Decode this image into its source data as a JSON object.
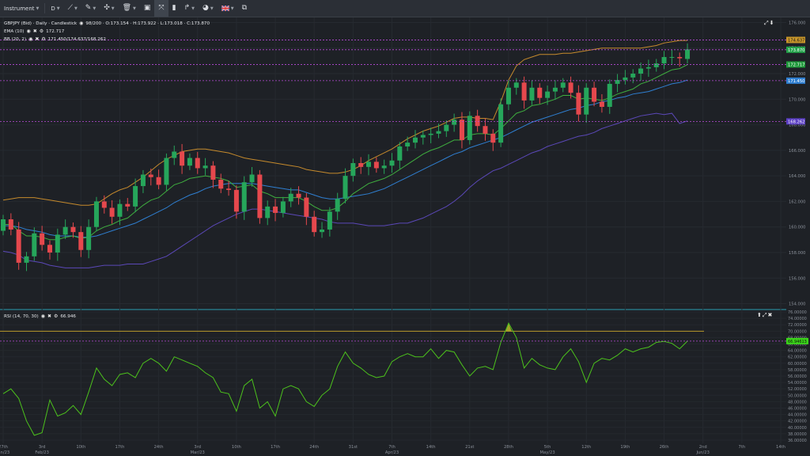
{
  "toolbar": {
    "instrument_label": "Instrument",
    "timeframe_label": "D"
  },
  "legend": {
    "instrument_line": "GBPJPY (Bid) · Daily · Candlestick",
    "ohlc": "98/200 · O:173.154 · H:173.922 · L:173.018 · C:173.870",
    "ema_label": "EMA (10)",
    "ema_value": "172.717",
    "bb_label": "BB (20, 2)",
    "bb_value": "171.450/174.637/168.262",
    "rsi_label": "RSI (14, 70, 30)",
    "rsi_value": "66.946"
  },
  "colors": {
    "up": "#26a65b",
    "down": "#e5484d",
    "ema": "#3fae3f",
    "bb_upper": "#c58a2c",
    "bb_middle": "#2f7fd1",
    "bb_lower": "#5b48b8",
    "rsi": "#4cc21c",
    "rsi_upper_line": "#b89a2a",
    "level_line": "#b84ad8"
  },
  "chart_data": [
    {
      "type": "candlestick",
      "title": "GBPJPY (Bid) · Daily · Candlestick",
      "ylim": [
        153.6,
        176.4
      ],
      "y_ticks": [
        "176.000",
        "174.000",
        "172.000",
        "170.000",
        "168.000",
        "166.000",
        "164.000",
        "162.000",
        "160.000",
        "158.000",
        "156.000",
        "154.000"
      ],
      "x_ticks": [
        {
          "i": 0,
          "label": "27th",
          "sub": "Jan/23"
        },
        {
          "i": 5,
          "label": "3rd",
          "sub": "Feb/23"
        },
        {
          "i": 10,
          "label": "10th",
          "sub": ""
        },
        {
          "i": 15,
          "label": "17th",
          "sub": ""
        },
        {
          "i": 20,
          "label": "24th",
          "sub": ""
        },
        {
          "i": 25,
          "label": "3rd",
          "sub": "Mar/23"
        },
        {
          "i": 30,
          "label": "10th",
          "sub": ""
        },
        {
          "i": 35,
          "label": "17th",
          "sub": ""
        },
        {
          "i": 40,
          "label": "24th",
          "sub": ""
        },
        {
          "i": 45,
          "label": "31st",
          "sub": ""
        },
        {
          "i": 50,
          "label": "7th",
          "sub": "Apr/23"
        },
        {
          "i": 55,
          "label": "14th",
          "sub": ""
        },
        {
          "i": 60,
          "label": "21st",
          "sub": ""
        },
        {
          "i": 65,
          "label": "28th",
          "sub": ""
        },
        {
          "i": 70,
          "label": "5th",
          "sub": "May/23"
        },
        {
          "i": 75,
          "label": "12th",
          "sub": ""
        },
        {
          "i": 80,
          "label": "19th",
          "sub": ""
        },
        {
          "i": 85,
          "label": "26th",
          "sub": ""
        },
        {
          "i": 90,
          "label": "2nd",
          "sub": "Jun/23"
        },
        {
          "i": 95,
          "label": "7th",
          "sub": ""
        },
        {
          "i": 100,
          "label": "14th",
          "sub": ""
        }
      ],
      "close": [
        160.6,
        159.8,
        157.2,
        157.7,
        159.5,
        158.6,
        158.0,
        159.4,
        160.0,
        159.6,
        158.2,
        160.0,
        162.0,
        161.5,
        160.8,
        161.8,
        161.6,
        163.2,
        164.1,
        163.9,
        163.3,
        165.4,
        165.9,
        164.8,
        165.4,
        164.6,
        164.8,
        163.7,
        163.0,
        162.9,
        161.2,
        163.5,
        164.1,
        160.7,
        161.6,
        161.1,
        162.0,
        162.6,
        162.3,
        160.8,
        159.6,
        159.8,
        161.2,
        162.2,
        164.0,
        165.0,
        164.7,
        165.1,
        164.6,
        164.8,
        165.2,
        166.3,
        166.6,
        167.0,
        167.2,
        167.3,
        167.5,
        168.0,
        168.4,
        166.8,
        168.7,
        167.9,
        167.3,
        166.6,
        169.6,
        170.9,
        171.3,
        169.9,
        170.9,
        170.1,
        170.6,
        170.9,
        171.3,
        170.5,
        168.8,
        170.9,
        169.8,
        169.4,
        171.2,
        171.5,
        171.7,
        172.0,
        172.4,
        172.5,
        172.8,
        173.3,
        173.3,
        173.2,
        173.9
      ],
      "open": [
        159.7,
        160.6,
        159.8,
        157.2,
        157.7,
        159.5,
        158.6,
        158.0,
        159.4,
        160.0,
        159.6,
        158.2,
        160.0,
        162.0,
        161.5,
        160.8,
        161.8,
        161.6,
        163.2,
        164.1,
        163.9,
        163.3,
        165.4,
        165.9,
        164.8,
        165.4,
        164.6,
        164.8,
        163.7,
        163.0,
        162.9,
        161.2,
        163.5,
        164.1,
        160.7,
        161.6,
        161.1,
        162.0,
        162.6,
        162.3,
        160.8,
        159.6,
        159.8,
        161.2,
        162.2,
        164.0,
        165.0,
        164.7,
        165.1,
        164.6,
        164.8,
        165.2,
        166.3,
        166.6,
        167.0,
        167.2,
        167.3,
        167.5,
        168.0,
        168.4,
        166.8,
        168.7,
        167.9,
        167.3,
        166.6,
        169.6,
        170.9,
        171.3,
        169.9,
        170.9,
        170.1,
        170.6,
        170.9,
        171.3,
        170.5,
        168.8,
        170.9,
        169.8,
        169.4,
        171.2,
        171.5,
        171.7,
        172.0,
        172.4,
        172.5,
        172.8,
        173.3,
        173.3,
        173.15
      ],
      "ema_10": [
        160.2,
        160.2,
        159.7,
        159.3,
        159.3,
        159.2,
        159.0,
        159.0,
        159.2,
        159.3,
        159.1,
        159.2,
        159.7,
        160.0,
        160.2,
        160.5,
        160.7,
        161.2,
        161.7,
        162.1,
        162.3,
        162.8,
        163.3,
        163.5,
        163.8,
        163.9,
        164.0,
        163.9,
        163.8,
        163.6,
        163.1,
        163.2,
        163.3,
        162.8,
        162.6,
        162.3,
        162.3,
        162.3,
        162.3,
        162.0,
        161.6,
        161.3,
        161.3,
        161.5,
        162.0,
        162.6,
        163.0,
        163.4,
        163.6,
        163.8,
        164.1,
        164.5,
        164.9,
        165.3,
        165.7,
        166.0,
        166.2,
        166.5,
        166.8,
        166.8,
        167.2,
        167.3,
        167.3,
        167.2,
        167.7,
        168.3,
        168.9,
        169.1,
        169.5,
        169.6,
        169.8,
        170.0,
        170.3,
        170.3,
        170.0,
        170.1,
        170.0,
        169.9,
        170.1,
        170.4,
        170.6,
        170.8,
        171.2,
        171.4,
        171.7,
        172.0,
        172.3,
        172.4,
        172.7
      ],
      "bb_middle": [
        160.1,
        160.1,
        160.0,
        159.8,
        159.7,
        159.6,
        159.4,
        159.3,
        159.3,
        159.3,
        159.2,
        159.2,
        159.3,
        159.5,
        159.7,
        159.9,
        160.1,
        160.3,
        160.6,
        160.9,
        161.2,
        161.5,
        161.9,
        162.2,
        162.5,
        162.7,
        163.0,
        163.2,
        163.3,
        163.4,
        163.4,
        163.4,
        163.4,
        163.3,
        163.2,
        163.1,
        163.0,
        162.9,
        162.9,
        162.7,
        162.5,
        162.3,
        162.2,
        162.2,
        162.3,
        162.4,
        162.5,
        162.6,
        162.8,
        163.0,
        163.3,
        163.6,
        163.9,
        164.2,
        164.5,
        164.8,
        165.1,
        165.4,
        165.7,
        165.9,
        166.2,
        166.4,
        166.6,
        166.8,
        167.0,
        167.3,
        167.6,
        167.9,
        168.2,
        168.4,
        168.6,
        168.8,
        169.0,
        169.2,
        169.3,
        169.5,
        169.6,
        169.8,
        169.9,
        170.1,
        170.2,
        170.4,
        170.5,
        170.6,
        170.8,
        171.0,
        171.2,
        171.3,
        171.5
      ],
      "bb_upper": [
        162.1,
        162.2,
        162.3,
        162.3,
        162.3,
        162.2,
        162.1,
        162.0,
        161.9,
        161.8,
        161.7,
        161.7,
        161.8,
        162.2,
        162.6,
        162.9,
        163.1,
        163.5,
        163.9,
        164.4,
        164.9,
        165.3,
        165.6,
        165.9,
        166.0,
        166.1,
        166.1,
        166.0,
        165.9,
        165.8,
        165.6,
        165.4,
        165.3,
        165.2,
        165.1,
        165.0,
        164.9,
        164.8,
        164.7,
        164.5,
        164.4,
        164.3,
        164.2,
        164.2,
        164.3,
        164.5,
        164.8,
        165.2,
        165.5,
        165.8,
        166.1,
        166.5,
        166.9,
        167.2,
        167.5,
        167.7,
        167.9,
        168.2,
        168.5,
        168.6,
        168.6,
        168.5,
        168.5,
        168.4,
        169.8,
        171.5,
        172.6,
        173.1,
        173.3,
        173.5,
        173.5,
        173.5,
        173.6,
        173.6,
        173.7,
        173.8,
        173.9,
        174.0,
        174.0,
        174.0,
        174.0,
        174.0,
        174.0,
        174.1,
        174.2,
        174.4,
        174.5,
        174.6,
        174.6
      ],
      "bb_lower": [
        158.1,
        158.0,
        157.8,
        157.4,
        157.3,
        157.2,
        157.0,
        156.9,
        156.8,
        156.8,
        156.8,
        156.8,
        156.9,
        157.0,
        157.0,
        157.0,
        157.1,
        157.1,
        157.1,
        157.3,
        157.5,
        157.7,
        158.1,
        158.5,
        158.9,
        159.3,
        159.7,
        160.1,
        160.4,
        160.7,
        161.0,
        161.2,
        161.4,
        161.4,
        161.3,
        161.2,
        161.1,
        161.0,
        160.9,
        160.8,
        160.7,
        160.6,
        160.4,
        160.3,
        160.3,
        160.3,
        160.2,
        160.1,
        160.1,
        160.1,
        160.2,
        160.3,
        160.3,
        160.5,
        160.7,
        161.0,
        161.3,
        161.6,
        162.0,
        162.5,
        163.1,
        163.6,
        164.0,
        164.4,
        164.6,
        164.9,
        165.2,
        165.5,
        165.8,
        166.0,
        166.3,
        166.5,
        166.7,
        166.9,
        167.1,
        167.2,
        167.4,
        167.7,
        167.9,
        168.1,
        168.3,
        168.5,
        168.7,
        168.8,
        168.9,
        168.8,
        168.9,
        168.1,
        168.3
      ],
      "level_lines": [
        {
          "value": 174.637,
          "label": "174.637",
          "bg": "#c8962a",
          "fg": "#1a1a1a"
        },
        {
          "value": 173.87,
          "label": "173.870",
          "bg": "#23a34a",
          "fg": "#ffffff"
        },
        {
          "value": 172.717,
          "label": "172.717",
          "bg": "#1f9a3b",
          "fg": "#ffffff"
        },
        {
          "value": 171.45,
          "label": "171.450",
          "bg": "#2f7fd1",
          "fg": "#ffffff"
        },
        {
          "value": 168.262,
          "label": "168.262",
          "bg": "#5b3fc4",
          "fg": "#ffffff"
        }
      ]
    },
    {
      "type": "line",
      "title": "RSI (14, 70, 30)",
      "ylim": [
        35.0,
        76.5
      ],
      "y_ticks": [
        "76.00000",
        "74.00000",
        "72.00000",
        "70.00000",
        "68.00000",
        "66.00000",
        "64.00000",
        "62.00000",
        "60.00000",
        "58.00000",
        "56.00000",
        "54.00000",
        "52.00000",
        "50.00000",
        "48.00000",
        "46.00000",
        "44.00000",
        "42.00000",
        "40.00000",
        "38.00000",
        "36.00000"
      ],
      "upper_level": 70.0,
      "current_value_label": "66.94613",
      "values": [
        50.5,
        52.0,
        49.0,
        42.0,
        37.5,
        38.3,
        48.5,
        43.5,
        44.5,
        46.8,
        44.0,
        51.0,
        58.5,
        55.0,
        53.0,
        56.5,
        57.0,
        55.5,
        60.0,
        61.5,
        60.0,
        57.5,
        62.0,
        61.0,
        60.0,
        59.0,
        57.0,
        55.5,
        51.0,
        50.5,
        45.0,
        53.0,
        55.0,
        46.0,
        48.0,
        43.5,
        52.0,
        53.0,
        52.0,
        48.0,
        46.5,
        50.0,
        52.0,
        59.0,
        63.5,
        60.0,
        58.5,
        56.5,
        55.5,
        56.0,
        60.5,
        62.0,
        63.0,
        62.0,
        62.0,
        64.5,
        61.5,
        64.0,
        63.5,
        59.5,
        56.0,
        58.5,
        59.0,
        58.0,
        66.5,
        72.5,
        68.0,
        58.5,
        61.5,
        59.5,
        58.5,
        58.0,
        62.0,
        64.5,
        60.5,
        54.0,
        60.0,
        61.5,
        61.0,
        62.5,
        64.5,
        63.5,
        64.5,
        65.0,
        66.5,
        66.8,
        66.2,
        64.5,
        66.9
      ]
    }
  ]
}
